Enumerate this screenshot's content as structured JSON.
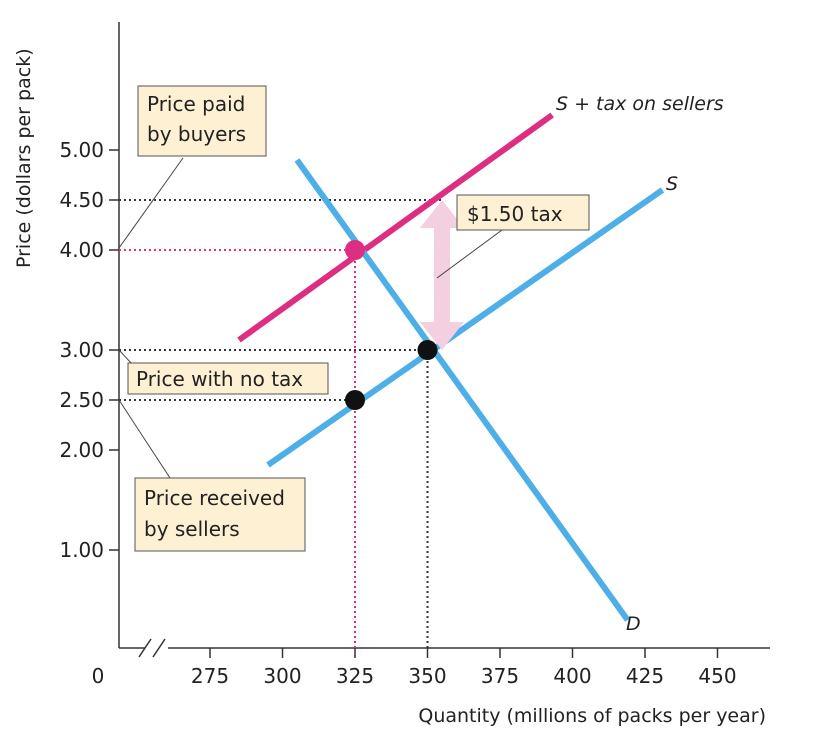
{
  "chart_data": {
    "type": "line",
    "xlabel": "Quantity (millions of packs per year)",
    "ylabel": "Price (dollars per pack)",
    "origin_label": "0",
    "x_ticks": [
      275,
      300,
      325,
      350,
      375,
      400,
      425,
      450
    ],
    "y_ticks": [
      "1.00",
      "2.00",
      "2.50",
      "3.00",
      "4.00",
      "4.50",
      "5.00"
    ],
    "x_range": [
      262,
      462
    ],
    "y_range": [
      0,
      6
    ],
    "series": [
      {
        "name": "S + tax on sellers",
        "color": "#dd2e82",
        "points": [
          [
            285,
            3.1
          ],
          [
            393,
            5.35
          ]
        ]
      },
      {
        "name": "S",
        "color": "#4daee8",
        "points": [
          [
            295,
            1.85
          ],
          [
            431,
            4.6
          ]
        ]
      },
      {
        "name": "D",
        "color": "#4daee8",
        "points": [
          [
            305,
            4.9
          ],
          [
            419,
            0.3
          ]
        ]
      }
    ],
    "points": [
      {
        "x": 325,
        "y": 4.0,
        "color": "#dd2e82"
      },
      {
        "x": 350,
        "y": 3.0,
        "color": "#111111"
      },
      {
        "x": 325,
        "y": 2.5,
        "color": "#111111"
      }
    ],
    "guides": [
      {
        "from": [
          262,
          4.5
        ],
        "to": [
          355,
          4.5
        ],
        "color": "#333333"
      },
      {
        "from": [
          262,
          4.0
        ],
        "to": [
          325,
          4.0
        ],
        "color": "#dd2e82"
      },
      {
        "from": [
          262,
          3.0
        ],
        "to": [
          350,
          3.0
        ],
        "color": "#333333"
      },
      {
        "from": [
          262,
          2.5
        ],
        "to": [
          325,
          2.5
        ],
        "color": "#333333"
      },
      {
        "from": [
          325,
          0
        ],
        "to": [
          325,
          4.0
        ],
        "color": "#dd2e82"
      },
      {
        "from": [
          350,
          0
        ],
        "to": [
          350,
          3.0
        ],
        "color": "#333333"
      }
    ],
    "tax_arrow": {
      "x": 355,
      "from": 3.0,
      "to": 4.5,
      "color": "#f3cfdf"
    },
    "highlight_x": 325,
    "highlight_y": "4.00",
    "highlight_color": "#dd2e82",
    "annotations": {
      "price_paid": [
        "Price paid",
        "by buyers"
      ],
      "price_no_tax": "Price with no tax",
      "price_received": [
        "Price received",
        "by sellers"
      ],
      "tax": "$1.50 tax"
    },
    "callout_bg": "#fdf0d3"
  }
}
